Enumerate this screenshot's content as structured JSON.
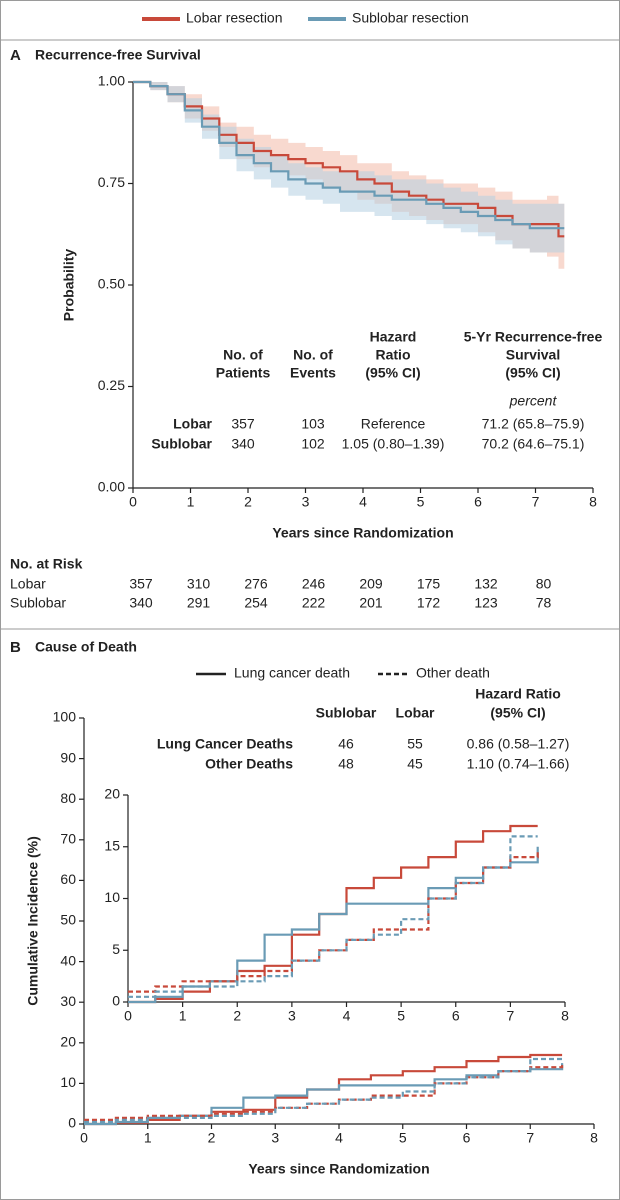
{
  "chart_data": [
    {
      "type": "step",
      "panel": "A",
      "title": "Recurrence-free Survival",
      "x_label": "Years since Randomization",
      "y_label": "Probability",
      "xlim": [
        0,
        8
      ],
      "xticks": [
        0,
        1,
        2,
        3,
        4,
        5,
        6,
        7,
        8
      ],
      "ylim": [
        0,
        1
      ],
      "yticks": [
        {
          "value": 0,
          "label": "0.00"
        },
        {
          "value": 0.25,
          "label": "0.25"
        },
        {
          "value": 0.5,
          "label": "0.50"
        },
        {
          "value": 0.75,
          "label": "0.75"
        },
        {
          "value": 1,
          "label": "1.00"
        }
      ],
      "x": [
        0,
        0.3,
        0.6,
        0.9,
        1.2,
        1.5,
        1.8,
        2.1,
        2.4,
        2.7,
        3.0,
        3.3,
        3.6,
        3.9,
        4.2,
        4.5,
        4.8,
        5.1,
        5.4,
        5.7,
        6.0,
        6.3,
        6.6,
        6.9,
        7.2,
        7.4,
        7.5
      ],
      "series": [
        {
          "name": "Lobar resection",
          "color": "#c8493a",
          "band_color": "#f2b9a8",
          "values": [
            1.0,
            0.99,
            0.97,
            0.94,
            0.91,
            0.87,
            0.85,
            0.83,
            0.82,
            0.81,
            0.8,
            0.79,
            0.78,
            0.76,
            0.75,
            0.73,
            0.72,
            0.71,
            0.7,
            0.7,
            0.69,
            0.67,
            0.65,
            0.65,
            0.65,
            0.62,
            0.62
          ],
          "lower": [
            1.0,
            0.98,
            0.95,
            0.91,
            0.88,
            0.84,
            0.81,
            0.79,
            0.78,
            0.77,
            0.76,
            0.74,
            0.73,
            0.71,
            0.7,
            0.68,
            0.67,
            0.66,
            0.65,
            0.65,
            0.63,
            0.61,
            0.59,
            0.58,
            0.57,
            0.54,
            0.54
          ],
          "upper": [
            1.0,
            1.0,
            0.99,
            0.97,
            0.94,
            0.9,
            0.89,
            0.87,
            0.86,
            0.85,
            0.84,
            0.83,
            0.82,
            0.8,
            0.8,
            0.78,
            0.77,
            0.76,
            0.75,
            0.75,
            0.74,
            0.73,
            0.71,
            0.71,
            0.72,
            0.7,
            0.7
          ]
        },
        {
          "name": "Sublobar resection",
          "color": "#6a9bb5",
          "band_color": "#b4cfe2",
          "values": [
            1.0,
            0.99,
            0.97,
            0.93,
            0.89,
            0.85,
            0.82,
            0.8,
            0.78,
            0.76,
            0.75,
            0.74,
            0.73,
            0.73,
            0.72,
            0.71,
            0.71,
            0.7,
            0.69,
            0.68,
            0.67,
            0.66,
            0.65,
            0.64,
            0.64,
            0.64,
            0.64
          ],
          "lower": [
            1.0,
            0.98,
            0.95,
            0.9,
            0.86,
            0.81,
            0.78,
            0.76,
            0.74,
            0.72,
            0.71,
            0.7,
            0.68,
            0.68,
            0.67,
            0.66,
            0.66,
            0.65,
            0.64,
            0.63,
            0.62,
            0.6,
            0.59,
            0.58,
            0.58,
            0.58,
            0.58
          ],
          "upper": [
            1.0,
            1.0,
            0.99,
            0.96,
            0.92,
            0.89,
            0.86,
            0.84,
            0.82,
            0.8,
            0.79,
            0.78,
            0.78,
            0.78,
            0.77,
            0.76,
            0.76,
            0.75,
            0.74,
            0.73,
            0.72,
            0.71,
            0.7,
            0.7,
            0.7,
            0.7,
            0.7
          ]
        }
      ],
      "table": {
        "columns": [
          [
            "No. of",
            "Patients"
          ],
          [
            "No. of",
            "Events"
          ],
          [
            "Hazard",
            "Ratio",
            "(95% CI)"
          ],
          [
            "5-Yr Recurrence-free",
            "Survival",
            "(95% CI)"
          ]
        ],
        "unit_note": "percent",
        "rows": [
          {
            "label": "Lobar",
            "cells": [
              "357",
              "103",
              "Reference",
              "71.2 (65.8–75.9)"
            ]
          },
          {
            "label": "Sublobar",
            "cells": [
              "340",
              "102",
              "1.05 (0.80–1.39)",
              "70.2 (64.6–75.1)"
            ]
          }
        ]
      },
      "at_risk": {
        "title": "No. at Risk",
        "x": [
          0,
          1,
          2,
          3,
          4,
          5,
          6,
          7
        ],
        "rows": [
          {
            "label": "Lobar",
            "values": [
              357,
              310,
              276,
              246,
              209,
              175,
              132,
              80
            ]
          },
          {
            "label": "Sublobar",
            "values": [
              340,
              291,
              254,
              222,
              201,
              172,
              123,
              78
            ]
          }
        ]
      }
    },
    {
      "type": "step",
      "panel": "B",
      "title": "Cause of Death",
      "x_label": "Years since Randomization",
      "y_label": "Cumulative Incidence (%)",
      "xlim": [
        0,
        8
      ],
      "xticks": [
        0,
        1,
        2,
        3,
        4,
        5,
        6,
        7,
        8
      ],
      "ylim": [
        0,
        100
      ],
      "yticks": [
        0,
        10,
        20,
        30,
        40,
        50,
        60,
        70,
        80,
        90,
        100
      ],
      "line_styles": [
        {
          "label": "Lung cancer death",
          "dash": false
        },
        {
          "label": "Other death",
          "dash": true
        }
      ],
      "x": [
        0,
        0.5,
        1,
        1.5,
        2,
        2.5,
        3,
        3.5,
        4,
        4.5,
        5,
        5.5,
        6,
        6.5,
        7,
        7.5
      ],
      "series": [
        {
          "color": "#c8493a",
          "dash": false,
          "values": [
            0,
            0.3,
            1,
            2,
            3,
            3.5,
            6.5,
            8.5,
            11,
            12,
            13,
            14,
            15.5,
            16.5,
            17,
            17
          ]
        },
        {
          "color": "#6a9bb5",
          "dash": false,
          "values": [
            0,
            0.5,
            1.5,
            2,
            4,
            6.5,
            7,
            8.5,
            9.5,
            9.5,
            9.5,
            11,
            12,
            13,
            13.5,
            15
          ]
        },
        {
          "color": "#c8493a",
          "dash": true,
          "values": [
            1,
            1.5,
            2,
            2,
            2.5,
            3,
            4,
            5,
            6,
            7,
            7,
            10,
            11.5,
            13,
            14,
            14.5
          ]
        },
        {
          "color": "#6a9bb5",
          "dash": true,
          "values": [
            0.5,
            1,
            1.5,
            1.5,
            2,
            2.5,
            4,
            5,
            6,
            6.5,
            8,
            10,
            11.5,
            13,
            16,
            16
          ]
        }
      ],
      "inset": {
        "xlim": [
          0,
          8
        ],
        "xticks": [
          0,
          1,
          2,
          3,
          4,
          5,
          6,
          7,
          8
        ],
        "ylim": [
          0,
          20
        ],
        "yticks": [
          0,
          5,
          10,
          15,
          20
        ]
      },
      "table": {
        "columns": [
          [
            "Sublobar"
          ],
          [
            "Lobar"
          ],
          [
            "Hazard Ratio",
            "(95% CI)"
          ]
        ],
        "rows": [
          {
            "label": "Lung Cancer Deaths",
            "cells": [
              "46",
              "55",
              "0.86 (0.58–1.27)"
            ]
          },
          {
            "label": "Other Deaths",
            "cells": [
              "48",
              "45",
              "1.10 (0.74–1.66)"
            ]
          }
        ]
      }
    }
  ]
}
